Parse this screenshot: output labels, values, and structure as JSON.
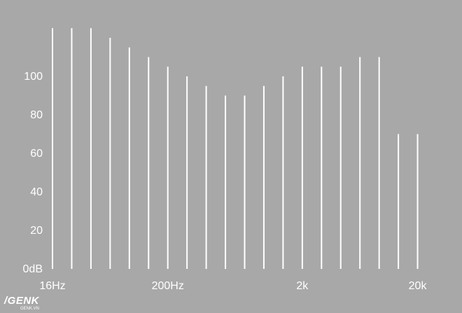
{
  "chart_data": {
    "type": "bar",
    "title": "",
    "xlabel": "",
    "ylabel": "",
    "ylim": [
      0,
      120
    ],
    "y_ticks": [
      {
        "value": 0,
        "label": "0dB"
      },
      {
        "value": 20,
        "label": "20"
      },
      {
        "value": 40,
        "label": "40"
      },
      {
        "value": 60,
        "label": "60"
      },
      {
        "value": 80,
        "label": "80"
      },
      {
        "value": 100,
        "label": "100"
      }
    ],
    "x_tick_labels": [
      {
        "label": "16Hz",
        "band_index": 0
      },
      {
        "label": "200Hz",
        "band_index": 6
      },
      {
        "label": "2k",
        "band_index": 13
      },
      {
        "label": "20k",
        "band_index": 19
      }
    ],
    "values": [
      125,
      125,
      125,
      120,
      115,
      110,
      105,
      100,
      95,
      90,
      90,
      95,
      100,
      105,
      105,
      105,
      110,
      110,
      70,
      70
    ],
    "bar_color": "#ffffff",
    "background": "#a8a8a8",
    "grid": false,
    "legend": "none"
  },
  "watermark": {
    "brand": "/GENK",
    "domain": "GENK.VN"
  }
}
